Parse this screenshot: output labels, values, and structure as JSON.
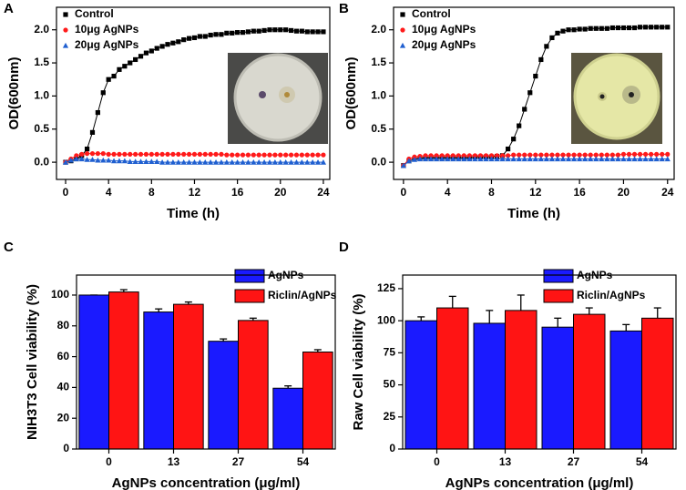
{
  "chart_data": [
    {
      "label": "A",
      "type": "line",
      "xlabel": "Time (h)",
      "ylabel": "OD(600nm)",
      "xlim": [
        -0.85,
        24.6
      ],
      "xticks": [
        0,
        4,
        8,
        12,
        16,
        20,
        24
      ],
      "ylim": [
        -0.26,
        2.34
      ],
      "yticks": [
        {
          "value": 0,
          "label": "0.0"
        },
        {
          "value": 0.5,
          "label": "0.5"
        },
        {
          "value": 1,
          "label": "1.0"
        },
        {
          "value": 1.5,
          "label": "1.5"
        },
        {
          "value": 2,
          "label": "2.0"
        }
      ],
      "x": [
        0,
        0.5,
        1,
        1.5,
        2,
        2.5,
        3,
        3.5,
        4,
        4.5,
        5,
        5.5,
        6,
        6.5,
        7,
        7.5,
        8,
        8.5,
        9,
        9.5,
        10,
        10.5,
        11,
        11.5,
        12,
        12.5,
        13,
        13.5,
        14,
        14.5,
        15,
        15.5,
        16,
        16.5,
        17,
        17.5,
        18,
        18.5,
        19,
        19.5,
        20,
        20.5,
        21,
        21.5,
        22,
        22.5,
        23,
        23.5,
        24
      ],
      "series": [
        {
          "name": "Control",
          "color": "#000000",
          "marker": "square",
          "values": [
            0,
            0.02,
            0.05,
            0.1,
            0.2,
            0.45,
            0.75,
            1.05,
            1.25,
            1.3,
            1.4,
            1.45,
            1.5,
            1.55,
            1.6,
            1.65,
            1.68,
            1.72,
            1.75,
            1.78,
            1.8,
            1.82,
            1.85,
            1.87,
            1.88,
            1.9,
            1.9,
            1.92,
            1.93,
            1.93,
            1.95,
            1.95,
            1.96,
            1.96,
            1.97,
            1.98,
            1.98,
            1.99,
            2.0,
            2.0,
            2.0,
            2.0,
            1.99,
            1.98,
            1.98,
            1.97,
            1.97,
            1.97,
            1.97
          ]
        },
        {
          "name": "10μg AgNPs",
          "color": "#ff1a1a",
          "marker": "circle",
          "values": [
            0,
            0.05,
            0.1,
            0.12,
            0.13,
            0.13,
            0.13,
            0.13,
            0.12,
            0.12,
            0.12,
            0.12,
            0.12,
            0.12,
            0.12,
            0.12,
            0.12,
            0.12,
            0.12,
            0.12,
            0.12,
            0.12,
            0.12,
            0.12,
            0.12,
            0.12,
            0.12,
            0.12,
            0.12,
            0.12,
            0.11,
            0.11,
            0.11,
            0.11,
            0.11,
            0.11,
            0.11,
            0.11,
            0.11,
            0.11,
            0.11,
            0.11,
            0.11,
            0.11,
            0.11,
            0.11,
            0.11,
            0.11,
            0.11
          ]
        },
        {
          "name": "20μg AgNPs",
          "color": "#1f5fd0",
          "marker": "triangle",
          "values": [
            0,
            0.03,
            0.05,
            0.05,
            0.04,
            0.04,
            0.03,
            0.03,
            0.03,
            0.02,
            0.02,
            0.02,
            0.01,
            0.01,
            0.01,
            0.01,
            0.01,
            0.01,
            0,
            0,
            0,
            0,
            0,
            0,
            0,
            0,
            0,
            0,
            0,
            0,
            0,
            0,
            0,
            0,
            0,
            0,
            0,
            0,
            0,
            0,
            0,
            0,
            0,
            0,
            0,
            0,
            0,
            0,
            0
          ]
        }
      ]
    },
    {
      "label": "B",
      "type": "line",
      "xlabel": "Time (h)",
      "ylabel": "OD(600nm)",
      "xlim": [
        -0.9,
        24.6
      ],
      "xticks": [
        0,
        4,
        8,
        12,
        16,
        20,
        24
      ],
      "ylim": [
        -0.26,
        2.34
      ],
      "yticks": [
        {
          "value": 0,
          "label": "0.0"
        },
        {
          "value": 0.5,
          "label": "0.5"
        },
        {
          "value": 1,
          "label": "1.0"
        },
        {
          "value": 1.5,
          "label": "1.5"
        },
        {
          "value": 2,
          "label": "2.0"
        }
      ],
      "x": [
        0,
        0.5,
        1,
        1.5,
        2,
        2.5,
        3,
        3.5,
        4,
        4.5,
        5,
        5.5,
        6,
        6.5,
        7,
        7.5,
        8,
        8.5,
        9,
        9.5,
        10,
        10.5,
        11,
        11.5,
        12,
        12.5,
        13,
        13.5,
        14,
        14.5,
        15,
        15.5,
        16,
        16.5,
        17,
        17.5,
        18,
        18.5,
        19,
        19.5,
        20,
        20.5,
        21,
        21.5,
        22,
        22.5,
        23,
        23.5,
        24
      ],
      "series": [
        {
          "name": "Control",
          "color": "#000000",
          "marker": "square",
          "values": [
            -0.05,
            0.02,
            0.05,
            0.06,
            0.07,
            0.07,
            0.07,
            0.07,
            0.07,
            0.07,
            0.07,
            0.07,
            0.07,
            0.08,
            0.08,
            0.08,
            0.08,
            0.09,
            0.1,
            0.2,
            0.35,
            0.55,
            0.8,
            1.05,
            1.3,
            1.55,
            1.75,
            1.88,
            1.95,
            1.98,
            2.0,
            2.0,
            2.01,
            2.01,
            2.02,
            2.02,
            2.02,
            2.02,
            2.03,
            2.03,
            2.03,
            2.03,
            2.03,
            2.04,
            2.04,
            2.04,
            2.04,
            2.04,
            2.04
          ]
        },
        {
          "name": "10μg AgNPs",
          "color": "#ff1a1a",
          "marker": "circle",
          "values": [
            -0.05,
            0.05,
            0.08,
            0.09,
            0.1,
            0.1,
            0.1,
            0.1,
            0.1,
            0.1,
            0.1,
            0.1,
            0.1,
            0.1,
            0.1,
            0.1,
            0.1,
            0.1,
            0.1,
            0.1,
            0.11,
            0.11,
            0.11,
            0.11,
            0.11,
            0.11,
            0.11,
            0.11,
            0.11,
            0.11,
            0.11,
            0.11,
            0.11,
            0.11,
            0.11,
            0.11,
            0.11,
            0.11,
            0.11,
            0.11,
            0.12,
            0.12,
            0.12,
            0.12,
            0.12,
            0.12,
            0.12,
            0.12,
            0.12
          ]
        },
        {
          "name": "20μg AgNPs",
          "color": "#1f5fd0",
          "marker": "triangle",
          "values": [
            -0.05,
            0.02,
            0.04,
            0.05,
            0.05,
            0.05,
            0.05,
            0.05,
            0.05,
            0.05,
            0.05,
            0.05,
            0.05,
            0.05,
            0.05,
            0.05,
            0.05,
            0.05,
            0.05,
            0.05,
            0.05,
            0.05,
            0.05,
            0.05,
            0.05,
            0.05,
            0.05,
            0.05,
            0.05,
            0.05,
            0.05,
            0.05,
            0.05,
            0.05,
            0.05,
            0.05,
            0.05,
            0.05,
            0.05,
            0.05,
            0.05,
            0.05,
            0.05,
            0.05,
            0.05,
            0.05,
            0.05,
            0.05,
            0.05
          ]
        }
      ]
    },
    {
      "label": "C",
      "type": "bar",
      "xlabel": "AgNPs  concentration (μg/ml)",
      "ylabel": "NIH3T3  Cell viability (%)",
      "categories": [
        "0",
        "13",
        "27",
        "54"
      ],
      "ylim": [
        0,
        113
      ],
      "yticks": [
        0,
        20,
        40,
        60,
        80,
        100
      ],
      "series": [
        {
          "name": "AgNPs",
          "color": "#1a1aff",
          "values": [
            100,
            89,
            70,
            39.5
          ],
          "errors": [
            0,
            2,
            1.5,
            1.5
          ]
        },
        {
          "name": "Riclin/AgNPs",
          "color": "#ff1414",
          "values": [
            102,
            94,
            83.5,
            63
          ],
          "errors": [
            1.5,
            1.5,
            1.5,
            1.5
          ]
        }
      ]
    },
    {
      "label": "D",
      "type": "bar",
      "xlabel": "AgNPs  concentration (μg/ml)",
      "ylabel": "Raw Cell  viability (%)",
      "categories": [
        "0",
        "13",
        "27",
        "54"
      ],
      "ylim": [
        0,
        135.6
      ],
      "yticks": [
        0,
        25,
        50,
        75,
        100,
        125
      ],
      "series": [
        {
          "name": "AgNPs",
          "color": "#1a1aff",
          "values": [
            100,
            98,
            95,
            92
          ],
          "errors": [
            3,
            10,
            7,
            5
          ]
        },
        {
          "name": "Riclin/AgNPs",
          "color": "#ff1414",
          "values": [
            110,
            108,
            105,
            102
          ],
          "errors": [
            9,
            12,
            5,
            8
          ]
        }
      ]
    }
  ]
}
